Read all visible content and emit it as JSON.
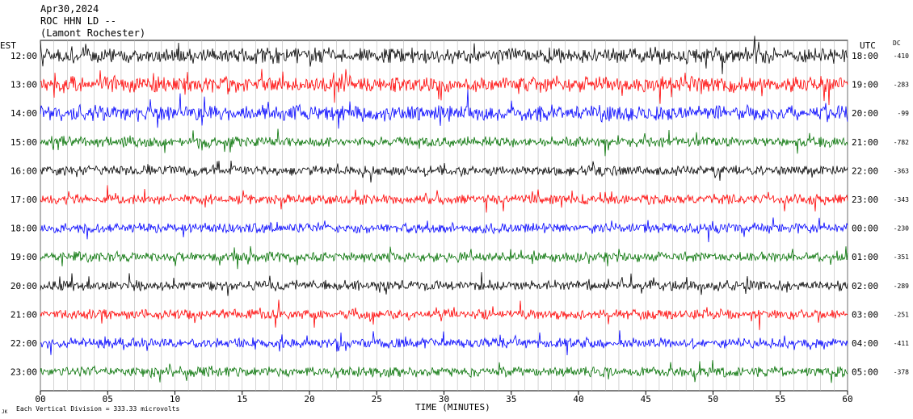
{
  "header": {
    "date": "Apr30,2024",
    "station": "ROC HHN LD --",
    "location": "(Lamont Rochester)"
  },
  "chart_data": {
    "type": "line",
    "title": "",
    "left_axis_label": "EST",
    "right_axis_label": "UTC",
    "dc_label": "DC",
    "xlabel": "TIME (MINUTES)",
    "xlim": [
      0,
      60
    ],
    "x_ticks": [
      "00",
      "05",
      "10",
      "15",
      "20",
      "25",
      "30",
      "35",
      "40",
      "45",
      "50",
      "55",
      "60"
    ],
    "line_colors": [
      "#000000",
      "#ff0000",
      "#0000ff",
      "#007000"
    ],
    "rows": [
      {
        "est": "12:00",
        "utc": "18:00",
        "dc": "-410",
        "color": "#000000"
      },
      {
        "est": "13:00",
        "utc": "19:00",
        "dc": "-283",
        "color": "#ff0000"
      },
      {
        "est": "14:00",
        "utc": "20:00",
        "dc": "-99",
        "color": "#0000ff"
      },
      {
        "est": "15:00",
        "utc": "21:00",
        "dc": "-782",
        "color": "#007000"
      },
      {
        "est": "16:00",
        "utc": "22:00",
        "dc": "-363",
        "color": "#000000"
      },
      {
        "est": "17:00",
        "utc": "23:00",
        "dc": "-343",
        "color": "#ff0000"
      },
      {
        "est": "18:00",
        "utc": "00:00",
        "dc": "-230",
        "color": "#0000ff"
      },
      {
        "est": "19:00",
        "utc": "01:00",
        "dc": "-351",
        "color": "#007000"
      },
      {
        "est": "20:00",
        "utc": "02:00",
        "dc": "-289",
        "color": "#000000"
      },
      {
        "est": "21:00",
        "utc": "03:00",
        "dc": "-251",
        "color": "#ff0000"
      },
      {
        "est": "22:00",
        "utc": "04:00",
        "dc": "-411",
        "color": "#0000ff"
      },
      {
        "est": "23:00",
        "utc": "05:00",
        "dc": "-378",
        "color": "#007000"
      }
    ],
    "footer_note": "Each Vertical Division =  333.33 microvolts",
    "footer_mark": "JK",
    "grid": true
  }
}
